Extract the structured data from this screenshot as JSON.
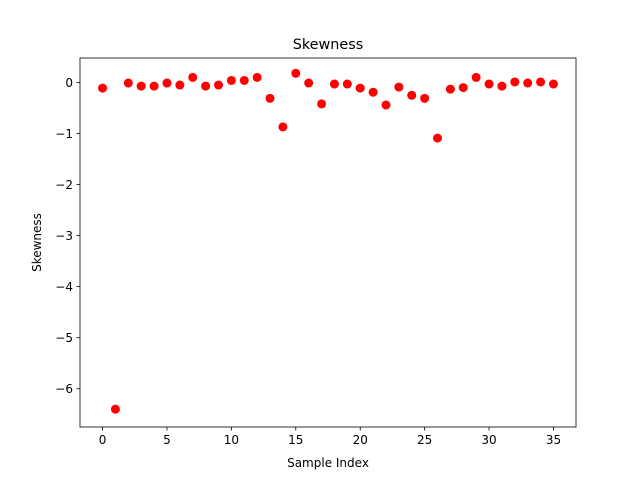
{
  "chart_data": {
    "type": "scatter",
    "title": "Skewness",
    "xlabel": "Sample Index",
    "ylabel": "Skewness",
    "xlim": [
      -1.75,
      36.75
    ],
    "ylim": [
      -6.75,
      0.48
    ],
    "xticks": [
      0,
      5,
      10,
      15,
      20,
      25,
      30,
      35
    ],
    "yticks": [
      -6,
      -5,
      -4,
      -3,
      -2,
      -1,
      0
    ],
    "xtick_labels": [
      "0",
      "5",
      "10",
      "15",
      "20",
      "25",
      "30",
      "35"
    ],
    "ytick_labels": [
      "−6",
      "−5",
      "−4",
      "−3",
      "−2",
      "−1",
      "0"
    ],
    "grid": false,
    "marker_color": "#ff0000",
    "series": [
      {
        "x": [
          0,
          1,
          2,
          3,
          4,
          5,
          6,
          7,
          8,
          9,
          10,
          11,
          12,
          13,
          14,
          15,
          16,
          17,
          18,
          19,
          20,
          21,
          22,
          23,
          24,
          25,
          26,
          27,
          28,
          29,
          30,
          31,
          32,
          33,
          34,
          35
        ],
        "y": [
          -0.11,
          -6.4,
          -0.01,
          -0.07,
          -0.07,
          -0.01,
          -0.05,
          0.1,
          -0.07,
          -0.05,
          0.04,
          0.04,
          0.1,
          -0.31,
          -0.87,
          0.18,
          -0.01,
          -0.42,
          -0.03,
          -0.03,
          -0.11,
          -0.19,
          -0.44,
          -0.09,
          -0.25,
          -0.31,
          -1.09,
          -0.13,
          -0.1,
          0.1,
          -0.03,
          -0.07,
          0.01,
          -0.01,
          0.01,
          -0.03
        ]
      }
    ]
  }
}
